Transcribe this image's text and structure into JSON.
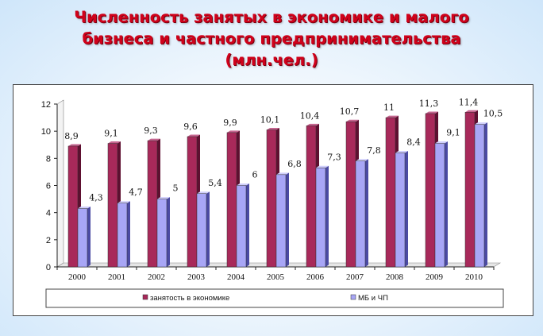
{
  "title_lines": [
    "Численность занятых в экономике и малого",
    "бизнеса и частного предпринимательства",
    "(млн.чел.)"
  ],
  "colors": {
    "title": "#d0021b",
    "series1_front": "#a8295a",
    "series2_front": "#a8a6f6"
  },
  "chart_data": {
    "type": "bar",
    "categories": [
      "2000",
      "2001",
      "2002",
      "2003",
      "2004",
      "2005",
      "2006",
      "2007",
      "2008",
      "2009",
      "2010"
    ],
    "series": [
      {
        "name": "занятость  в экономике",
        "values": [
          8.9,
          9.1,
          9.3,
          9.6,
          9.9,
          10.1,
          10.4,
          10.7,
          11,
          11.3,
          11.4
        ],
        "labels": [
          "8,9",
          "9,1",
          "9,3",
          "9,6",
          "9,9",
          "10,1",
          "10,4",
          "10,7",
          "11",
          "11,3",
          "11,4"
        ]
      },
      {
        "name": "МБ и ЧП",
        "values": [
          4.3,
          4.7,
          5,
          5.4,
          6,
          6.8,
          7.3,
          7.8,
          8.4,
          9.1,
          10.5
        ],
        "labels": [
          "4,3",
          "4,7",
          "5",
          "5,4",
          "6",
          "6,8",
          "7,3",
          "7,8",
          "8,4",
          "9,1",
          "10,5"
        ]
      }
    ],
    "y_ticks": [
      "0",
      "2",
      "4",
      "6",
      "8",
      "10",
      "12"
    ],
    "ylim": [
      0,
      12
    ],
    "grid": false,
    "legend": "bottom"
  }
}
